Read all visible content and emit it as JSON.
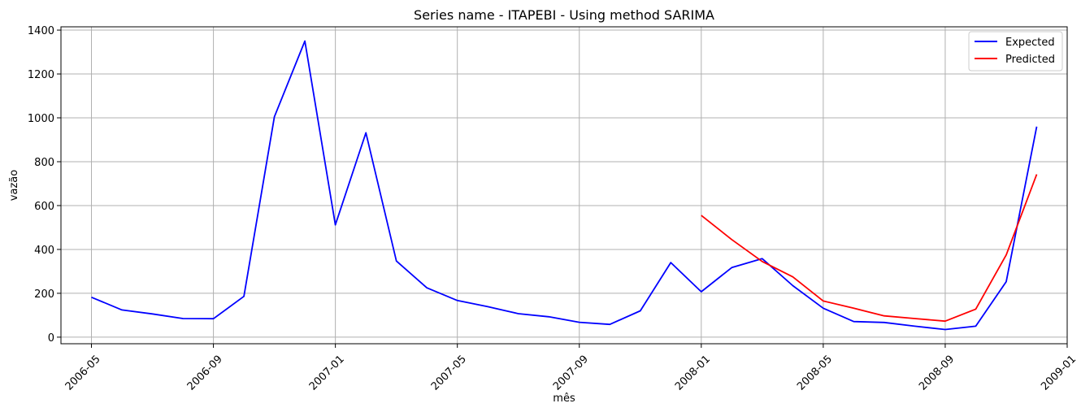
{
  "chart_data": {
    "type": "line",
    "title": "Series name - ITAPEBI - Using method SARIMA",
    "xlabel": "mês",
    "ylabel": "vazão",
    "x_ticks": [
      "2006-05",
      "2006-09",
      "2007-01",
      "2007-05",
      "2007-09",
      "2008-01",
      "2008-05",
      "2008-09",
      "2009-01"
    ],
    "y_ticks": [
      0,
      200,
      400,
      600,
      800,
      1000,
      1200,
      1400
    ],
    "xlim": [
      "2006-04",
      "2009-01"
    ],
    "ylim": [
      -30,
      1415
    ],
    "grid": true,
    "legend_position": "top-right",
    "series": [
      {
        "name": "Expected",
        "color": "#0000ff",
        "x": [
          "2006-05",
          "2006-06",
          "2006-07",
          "2006-08",
          "2006-09",
          "2006-10",
          "2006-11",
          "2006-12",
          "2007-01",
          "2007-02",
          "2007-03",
          "2007-04",
          "2007-05",
          "2007-06",
          "2007-07",
          "2007-08",
          "2007-09",
          "2007-10",
          "2007-11",
          "2007-12",
          "2008-01",
          "2008-02",
          "2008-03",
          "2008-04",
          "2008-05",
          "2008-06",
          "2008-07",
          "2008-08",
          "2008-09",
          "2008-10",
          "2008-11",
          "2008-12"
        ],
        "y": [
          182,
          124,
          106,
          85,
          84,
          186,
          1005,
          1350,
          512,
          932,
          347,
          225,
          167,
          139,
          107,
          93,
          68,
          58,
          120,
          340,
          207,
          317,
          358,
          235,
          132,
          71,
          67,
          50,
          35,
          50,
          253,
          960
        ]
      },
      {
        "name": "Predicted",
        "color": "#ff0000",
        "x": [
          "2008-01",
          "2008-02",
          "2008-03",
          "2008-04",
          "2008-05",
          "2008-06",
          "2008-07",
          "2008-08",
          "2008-09",
          "2008-10",
          "2008-11",
          "2008-12"
        ],
        "y": [
          555,
          445,
          345,
          275,
          165,
          132,
          97,
          85,
          73,
          128,
          375,
          742
        ]
      }
    ]
  }
}
